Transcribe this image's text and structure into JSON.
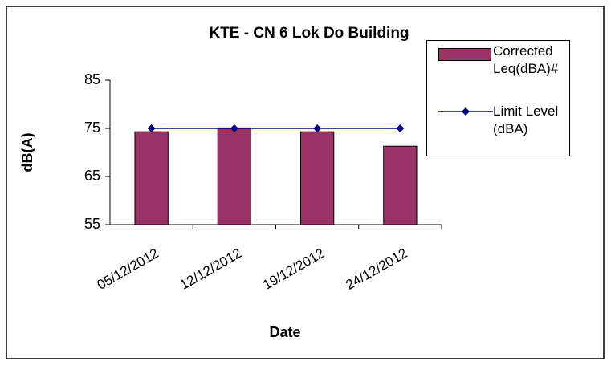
{
  "chart_data": {
    "type": "bar_line",
    "title": "KTE - CN 6 Lok Do Building",
    "x_label": "Date",
    "y_label": "dB(A)",
    "categories": [
      "05/12/2012",
      "12/12/2012",
      "19/12/2012",
      "24/12/2012"
    ],
    "series": [
      {
        "name": "Corrected Leq(dBA)#",
        "type": "bar",
        "color": "#993366",
        "values": [
          74.3,
          75.1,
          74.3,
          71.3
        ]
      },
      {
        "name": "Limit Level (dBA)",
        "type": "line",
        "color": "#000080",
        "values": [
          75,
          75,
          75,
          75
        ]
      }
    ],
    "ylim": [
      55,
      85
    ],
    "yticks": [
      55,
      65,
      75,
      85
    ],
    "grid": false,
    "legend": "right"
  }
}
